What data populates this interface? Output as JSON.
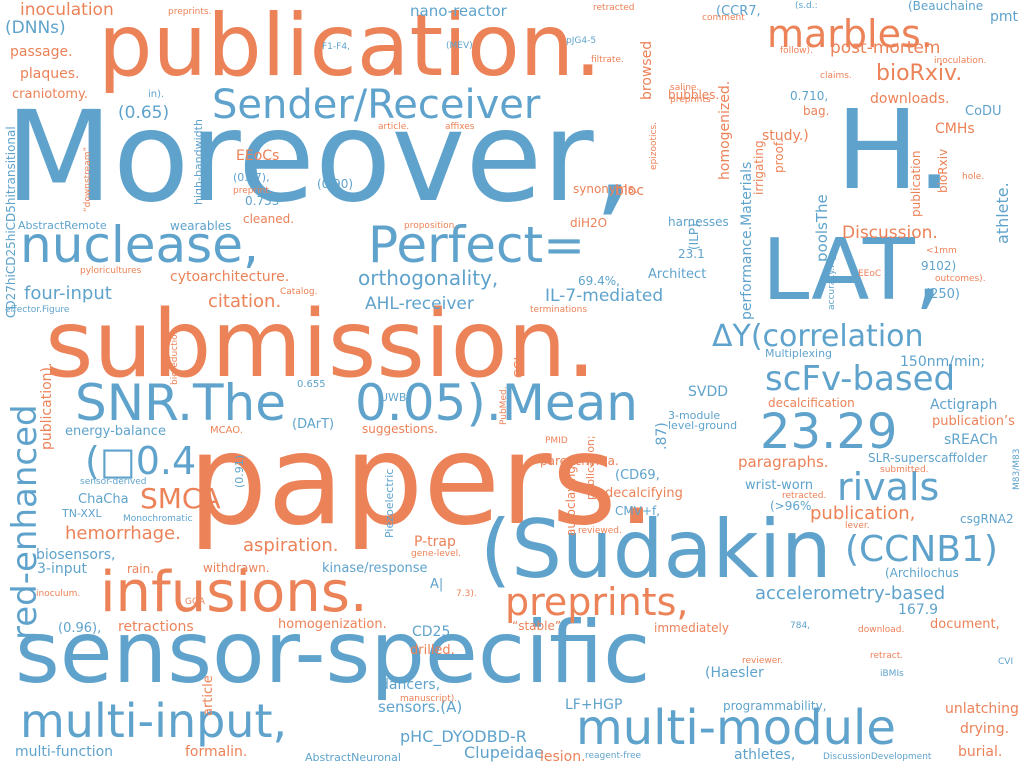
{
  "palette": {
    "blue": "#5fa3cc",
    "orange": "#ec8258"
  },
  "words": [
    {
      "text": "papers.",
      "color": "orange"
    },
    {
      "text": "Moreover,",
      "color": "blue"
    },
    {
      "text": "submission.",
      "color": "orange"
    },
    {
      "text": "publication.",
      "color": "orange"
    },
    {
      "text": "sensor-specific",
      "color": "blue"
    },
    {
      "text": "(Sudakin",
      "color": "blue"
    },
    {
      "text": "H.",
      "color": "blue"
    },
    {
      "text": "LAT,",
      "color": "blue"
    },
    {
      "text": "infusions.",
      "color": "orange"
    },
    {
      "text": "nuclease,",
      "color": "blue"
    },
    {
      "text": "Perfect=",
      "color": "blue"
    },
    {
      "text": "multi-module",
      "color": "blue"
    },
    {
      "text": "multi-input,",
      "color": "blue"
    },
    {
      "text": "SNR.The",
      "color": "blue"
    },
    {
      "text": "0.05).Mean",
      "color": "blue"
    },
    {
      "text": "Sender/Receiver",
      "color": "blue"
    },
    {
      "text": "23.29",
      "color": "blue"
    },
    {
      "text": "marbles.",
      "color": "orange"
    },
    {
      "text": "preprints,",
      "color": "orange"
    },
    {
      "text": "red-enhanced",
      "color": "blue"
    },
    {
      "text": "scFv-based",
      "color": "blue"
    },
    {
      "text": "rivals",
      "color": "blue"
    },
    {
      "text": "(CCNB1)",
      "color": "blue"
    },
    {
      "text": "ΔY(correlation",
      "color": "blue"
    },
    {
      "text": "(□0.4",
      "color": "blue"
    },
    {
      "text": "SMCA",
      "color": "orange"
    },
    {
      "text": "bioRxiv.",
      "color": "orange"
    },
    {
      "text": "orthogonality,",
      "color": "blue"
    },
    {
      "text": "four-input",
      "color": "blue"
    },
    {
      "text": "citation.",
      "color": "orange"
    },
    {
      "text": "AHL-receiver",
      "color": "blue"
    },
    {
      "text": "IL-7-mediated",
      "color": "blue"
    },
    {
      "text": "aspiration.",
      "color": "orange"
    },
    {
      "text": "accelerometry-based",
      "color": "blue"
    },
    {
      "text": "hemorrhage.",
      "color": "orange"
    },
    {
      "text": "publication,",
      "color": "orange"
    },
    {
      "text": "inoculation",
      "color": "orange"
    },
    {
      "text": "post-mortem",
      "color": "orange"
    },
    {
      "text": "nano-reactor",
      "color": "blue"
    },
    {
      "text": "(DNNs)",
      "color": "blue"
    },
    {
      "text": "passage.",
      "color": "orange"
    },
    {
      "text": "plaques.",
      "color": "orange"
    },
    {
      "text": "craniotomy.",
      "color": "orange"
    },
    {
      "text": "(0.65)",
      "color": "blue"
    },
    {
      "text": "EEoCs",
      "color": "orange"
    },
    {
      "text": "(0.87),",
      "color": "blue"
    },
    {
      "text": "(0.90)",
      "color": "blue"
    },
    {
      "text": "0.733",
      "color": "blue"
    },
    {
      "text": "cleaned.",
      "color": "orange"
    },
    {
      "text": "wearables",
      "color": "blue"
    },
    {
      "text": "AbstractRemote",
      "color": "blue"
    },
    {
      "text": "cytoarchitecture.",
      "color": "orange"
    },
    {
      "text": "Discussion.",
      "color": "orange"
    },
    {
      "text": "study.)",
      "color": "orange"
    },
    {
      "text": "CMHs",
      "color": "orange"
    },
    {
      "text": "downloads.",
      "color": "orange"
    },
    {
      "text": "CoDU",
      "color": "blue"
    },
    {
      "text": "0.710,",
      "color": "blue"
    },
    {
      "text": "bag.",
      "color": "orange"
    },
    {
      "text": "pmt",
      "color": "blue"
    },
    {
      "text": "(Beauchaine",
      "color": "blue"
    },
    {
      "text": "athlete.",
      "color": "blue"
    },
    {
      "text": "(250)",
      "color": "blue"
    },
    {
      "text": "9102)",
      "color": "blue"
    },
    {
      "text": "Architect",
      "color": "blue"
    },
    {
      "text": "69.4%,",
      "color": "blue"
    },
    {
      "text": "harnesses",
      "color": "blue"
    },
    {
      "text": "synonyms.",
      "color": "orange"
    },
    {
      "text": "bloc",
      "color": "orange"
    },
    {
      "text": "diH2O",
      "color": "orange"
    },
    {
      "text": "bubbles.",
      "color": "orange"
    },
    {
      "text": "150nm/min;",
      "color": "blue"
    },
    {
      "text": "Multiplexing",
      "color": "blue"
    },
    {
      "text": "Actigraph",
      "color": "blue"
    },
    {
      "text": "publication’s",
      "color": "orange"
    },
    {
      "text": "sREACh",
      "color": "blue"
    },
    {
      "text": "SLR-superscaffolder",
      "color": "blue"
    },
    {
      "text": "decalcification",
      "color": "orange"
    },
    {
      "text": "paragraphs.",
      "color": "orange"
    },
    {
      "text": "wrist-worn",
      "color": "blue"
    },
    {
      "text": "(CD69,",
      "color": "blue"
    },
    {
      "text": "decalcifying",
      "color": "orange"
    },
    {
      "text": "CMV+f,",
      "color": "blue"
    },
    {
      "text": "(>96%",
      "color": "blue"
    },
    {
      "text": "csgRNA2",
      "color": "blue"
    },
    {
      "text": "SVDD",
      "color": "blue"
    },
    {
      "text": "level-ground",
      "color": "blue"
    },
    {
      "text": "3-module",
      "color": "blue"
    },
    {
      "text": "parenchyma.",
      "color": "orange"
    },
    {
      "text": "suggestions.",
      "color": "orange"
    },
    {
      "text": "(DArT)",
      "color": "blue"
    },
    {
      "text": "energy-balance",
      "color": "blue"
    },
    {
      "text": "ChaCha",
      "color": "blue"
    },
    {
      "text": "TN-XXL",
      "color": "blue"
    },
    {
      "text": "biosensors,",
      "color": "blue"
    },
    {
      "text": "3-input",
      "color": "blue"
    },
    {
      "text": "rain.",
      "color": "orange"
    },
    {
      "text": "withdrawn.",
      "color": "orange"
    },
    {
      "text": "kinase/response",
      "color": "blue"
    },
    {
      "text": "P-trap",
      "color": "orange"
    },
    {
      "text": "(0.96),",
      "color": "blue"
    },
    {
      "text": "retractions",
      "color": "orange"
    },
    {
      "text": "homogenization.",
      "color": "orange"
    },
    {
      "text": "CD25,",
      "color": "blue"
    },
    {
      "text": "drilled.",
      "color": "orange"
    },
    {
      "text": "“stable”",
      "color": "orange"
    },
    {
      "text": "immediately",
      "color": "orange"
    },
    {
      "text": "167.9",
      "color": "blue"
    },
    {
      "text": "(Archilochus",
      "color": "blue"
    },
    {
      "text": "document,",
      "color": "orange"
    },
    {
      "text": "dancers,",
      "color": "blue"
    },
    {
      "text": "sensors.(A)",
      "color": "blue"
    },
    {
      "text": "LF+HGP",
      "color": "blue"
    },
    {
      "text": "programmability,",
      "color": "blue"
    },
    {
      "text": "unlatching",
      "color": "orange"
    },
    {
      "text": "drying.",
      "color": "orange"
    },
    {
      "text": "burial.",
      "color": "orange"
    },
    {
      "text": "(Haesler",
      "color": "blue"
    },
    {
      "text": "pHC_DYODBD-R",
      "color": "blue"
    },
    {
      "text": "Clupeidae",
      "color": "blue"
    },
    {
      "text": "athletes,",
      "color": "blue"
    },
    {
      "text": "lesion.",
      "color": "orange"
    },
    {
      "text": "multi-function",
      "color": "blue"
    },
    {
      "text": "formalin.",
      "color": "orange"
    },
    {
      "text": "AbstractNeuronal",
      "color": "blue"
    },
    {
      "text": "reagent-free",
      "color": "blue"
    },
    {
      "text": "DiscussionDevelopment",
      "color": "blue"
    },
    {
      "text": "preprints.",
      "color": "orange"
    },
    {
      "text": "retracted",
      "color": "orange"
    },
    {
      "text": "comment",
      "color": "orange"
    },
    {
      "text": "(CCR7,",
      "color": "blue"
    },
    {
      "text": "(s.d.:",
      "color": "blue"
    },
    {
      "text": "inoculation.",
      "color": "orange"
    },
    {
      "text": "claims.",
      "color": "orange"
    },
    {
      "text": "follow).",
      "color": "orange"
    },
    {
      "text": "filtrate.",
      "color": "orange"
    },
    {
      "text": "pJG4-5",
      "color": "blue"
    },
    {
      "text": "(MEV)",
      "color": "blue"
    },
    {
      "text": "F1-F4,",
      "color": "blue"
    },
    {
      "text": "in).",
      "color": "blue"
    },
    {
      "text": "saline.",
      "color": "orange"
    },
    {
      "text": "preprints",
      "color": "orange"
    },
    {
      "text": "article.",
      "color": "orange"
    },
    {
      "text": "affixes",
      "color": "orange"
    },
    {
      "text": "preprint.",
      "color": "orange"
    },
    {
      "text": "proposition.",
      "color": "orange"
    },
    {
      "text": "23.1",
      "color": "blue"
    },
    {
      "text": "Catalog.",
      "color": "orange"
    },
    {
      "text": "effector.Figure",
      "color": "blue"
    },
    {
      "text": "terminations",
      "color": "orange"
    },
    {
      "text": "pyloricultures",
      "color": "orange"
    },
    {
      "text": "0.655",
      "color": "blue"
    },
    {
      "text": "UWB",
      "color": "blue"
    },
    {
      "text": "MCAO.",
      "color": "orange"
    },
    {
      "text": "PMID",
      "color": "orange"
    },
    {
      "text": "sensor-derived",
      "color": "blue"
    },
    {
      "text": "Monochromatic",
      "color": "blue"
    },
    {
      "text": "reviewed.",
      "color": "orange"
    },
    {
      "text": "gene-level.",
      "color": "orange"
    },
    {
      "text": "7.3).",
      "color": "orange"
    },
    {
      "text": "A|",
      "color": "blue"
    },
    {
      "text": "inoculum.",
      "color": "orange"
    },
    {
      "text": "GOA",
      "color": "orange"
    },
    {
      "text": "submitted.",
      "color": "orange"
    },
    {
      "text": "retracted.",
      "color": "orange"
    },
    {
      "text": "lever.",
      "color": "orange"
    },
    {
      "text": "784,",
      "color": "blue"
    },
    {
      "text": "download.",
      "color": "orange"
    },
    {
      "text": "reviewer.",
      "color": "orange"
    },
    {
      "text": "retract.",
      "color": "orange"
    },
    {
      "text": "iBMIs",
      "color": "blue"
    },
    {
      "text": "CVI",
      "color": "blue"
    },
    {
      "text": "manuscript).",
      "color": "orange"
    },
    {
      "text": "EEoC",
      "color": "orange"
    },
    {
      "text": "outcomes).",
      "color": "orange"
    },
    {
      "text": "<1mm",
      "color": "orange"
    },
    {
      "text": "hole.",
      "color": "orange"
    },
    {
      "text": "CD27hiCD25hiCD5hitransitional",
      "color": "blue"
    },
    {
      "text": "publication).",
      "color": "orange"
    },
    {
      "text": "high-bandwidth",
      "color": "blue"
    },
    {
      "text": "“downstream”",
      "color": "orange"
    },
    {
      "text": "browsed",
      "color": "orange"
    },
    {
      "text": "epizootics.",
      "color": "orange"
    },
    {
      "text": "(ILP),",
      "color": "blue"
    },
    {
      "text": "homogenized.",
      "color": "orange"
    },
    {
      "text": "performance.Materials",
      "color": "blue"
    },
    {
      "text": "irrigating",
      "color": "orange"
    },
    {
      "text": "proof.",
      "color": "orange"
    },
    {
      "text": "poolsThe",
      "color": "blue"
    },
    {
      "text": "accuracy.Fig.",
      "color": "blue"
    },
    {
      "text": "publication",
      "color": "orange"
    },
    {
      "text": "bioRxiv",
      "color": "orange"
    },
    {
      "text": "bioreduction",
      "color": "orange"
    },
    {
      "text": "CGIs.",
      "color": "orange"
    },
    {
      "text": "PubMed.",
      "color": "orange"
    },
    {
      "text": "(0.91)",
      "color": "blue"
    },
    {
      "text": ".87)",
      "color": "blue"
    },
    {
      "text": "autoclaving.",
      "color": "orange"
    },
    {
      "text": "publication;",
      "color": "orange"
    },
    {
      "text": "Piezoelectric",
      "color": "blue"
    },
    {
      "text": "article",
      "color": "orange"
    },
    {
      "text": "M83/M83",
      "color": "blue"
    }
  ]
}
